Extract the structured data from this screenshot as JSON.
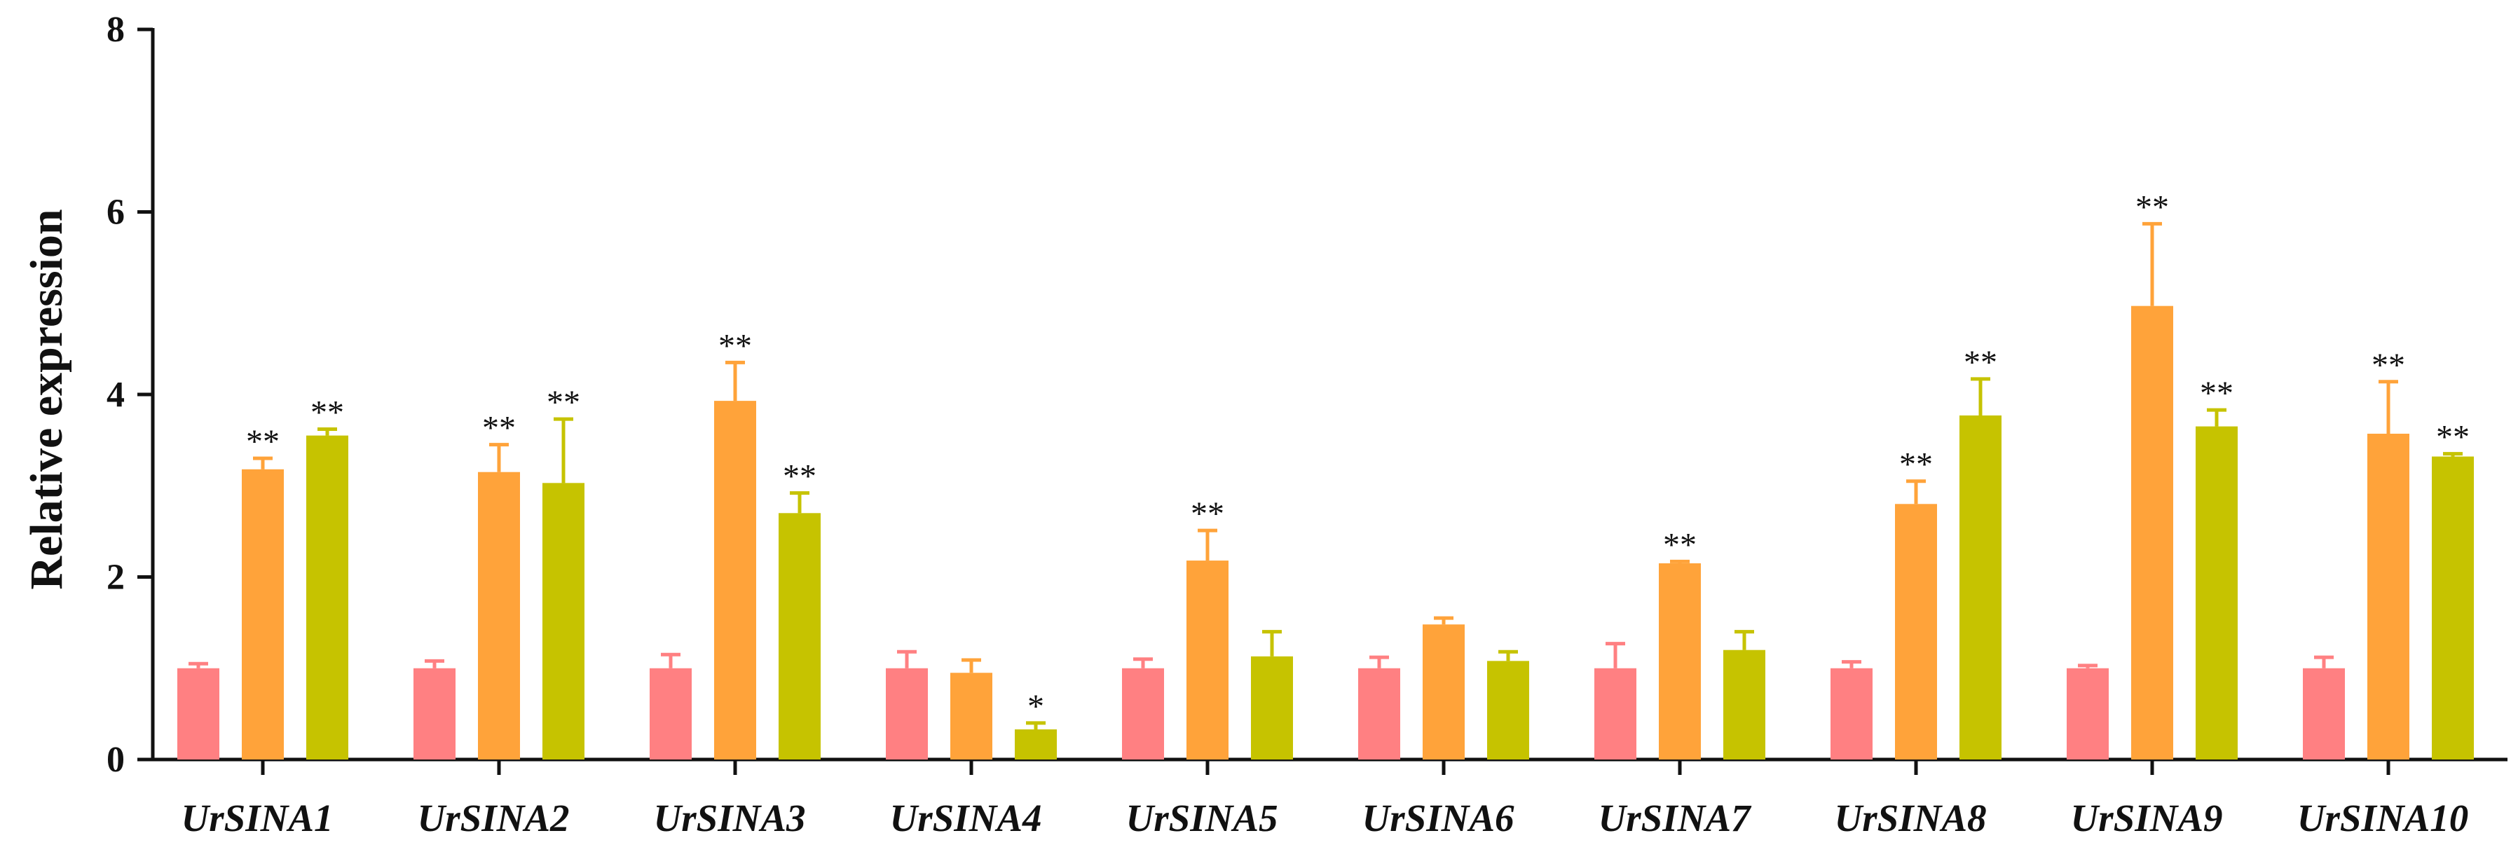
{
  "chart_data": {
    "type": "bar",
    "title": "",
    "xlabel": "",
    "ylabel": "Relative expression",
    "ylim": [
      0,
      8
    ],
    "yticks": [
      0,
      2,
      4,
      6,
      8
    ],
    "categories": [
      "UrSINA1",
      "UrSINA2",
      "UrSINA3",
      "UrSINA4",
      "UrSINA5",
      "UrSINA6",
      "UrSINA7",
      "UrSINA8",
      "UrSINA9",
      "UrSINA10"
    ],
    "series": [
      {
        "color": "#FF8082",
        "values": [
          1.0,
          1.0,
          1.0,
          1.0,
          1.0,
          1.0,
          1.0,
          1.0,
          1.0,
          1.0
        ],
        "errors": [
          0.05,
          0.08,
          0.15,
          0.18,
          0.1,
          0.12,
          0.27,
          0.07,
          0.03,
          0.12
        ],
        "significance": [
          "",
          "",
          "",
          "",
          "",
          "",
          "",
          "",
          "",
          ""
        ]
      },
      {
        "color": "#FFA33A",
        "values": [
          3.18,
          3.15,
          3.93,
          0.95,
          2.18,
          1.48,
          2.15,
          2.8,
          4.97,
          3.57
        ],
        "errors": [
          0.12,
          0.3,
          0.42,
          0.14,
          0.33,
          0.07,
          0.02,
          0.25,
          0.9,
          0.57
        ],
        "significance": [
          "**",
          "**",
          "**",
          "",
          "**",
          "",
          "**",
          "**",
          "**",
          "**"
        ]
      },
      {
        "color": "#C6C300",
        "values": [
          3.55,
          3.03,
          2.7,
          0.33,
          1.13,
          1.08,
          1.2,
          3.77,
          3.65,
          3.32
        ],
        "errors": [
          0.07,
          0.7,
          0.22,
          0.07,
          0.27,
          0.1,
          0.2,
          0.4,
          0.18,
          0.03
        ],
        "significance": [
          "**",
          "**",
          "**",
          "*",
          "",
          "",
          "",
          "**",
          "**",
          "**"
        ]
      }
    ],
    "grid": false,
    "legend": "none"
  }
}
